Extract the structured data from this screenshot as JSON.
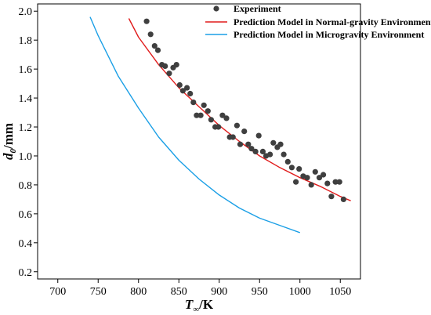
{
  "chart_data": {
    "type": "scatter",
    "xlabel_main": "T",
    "xlabel_sub": "∞",
    "xlabel_unit": "/K",
    "ylabel_main": "d",
    "ylabel_sub": "0",
    "ylabel_unit": "/mm",
    "xlim": [
      675,
      1075
    ],
    "ylim": [
      0.15,
      2.05
    ],
    "xticks": [
      700,
      750,
      800,
      850,
      900,
      950,
      1000,
      1050
    ],
    "yticks": [
      0.2,
      0.4,
      0.6,
      0.8,
      1.0,
      1.2,
      1.4,
      1.6,
      1.8,
      2.0
    ],
    "ytick_labels": [
      "0.2",
      "0.4",
      "0.6",
      "0.8",
      "1.0",
      "1.2",
      "1.4",
      "1.6",
      "1.8",
      "2.0"
    ],
    "grid": false,
    "legend_position": "top-right",
    "series": [
      {
        "name": "Experiment",
        "kind": "scatter",
        "color": "#3f3f3f",
        "points": [
          [
            810,
            1.93
          ],
          [
            815,
            1.84
          ],
          [
            820,
            1.76
          ],
          [
            824,
            1.73
          ],
          [
            829,
            1.63
          ],
          [
            833,
            1.62
          ],
          [
            838,
            1.57
          ],
          [
            843,
            1.61
          ],
          [
            847,
            1.63
          ],
          [
            851,
            1.49
          ],
          [
            855,
            1.45
          ],
          [
            860,
            1.47
          ],
          [
            864,
            1.43
          ],
          [
            868,
            1.37
          ],
          [
            872,
            1.28
          ],
          [
            877,
            1.28
          ],
          [
            881,
            1.35
          ],
          [
            886,
            1.31
          ],
          [
            890,
            1.25
          ],
          [
            895,
            1.2
          ],
          [
            899,
            1.2
          ],
          [
            904,
            1.28
          ],
          [
            909,
            1.26
          ],
          [
            913,
            1.13
          ],
          [
            917,
            1.13
          ],
          [
            922,
            1.21
          ],
          [
            926,
            1.08
          ],
          [
            931,
            1.17
          ],
          [
            936,
            1.08
          ],
          [
            940,
            1.05
          ],
          [
            945,
            1.03
          ],
          [
            949,
            1.14
          ],
          [
            954,
            1.03
          ],
          [
            958,
            1.0
          ],
          [
            963,
            1.01
          ],
          [
            967,
            1.09
          ],
          [
            972,
            1.06
          ],
          [
            976,
            1.08
          ],
          [
            980,
            1.01
          ],
          [
            985,
            0.96
          ],
          [
            990,
            0.92
          ],
          [
            995,
            0.82
          ],
          [
            999,
            0.91
          ],
          [
            1004,
            0.86
          ],
          [
            1009,
            0.85
          ],
          [
            1014,
            0.8
          ],
          [
            1019,
            0.89
          ],
          [
            1024,
            0.85
          ],
          [
            1029,
            0.87
          ],
          [
            1034,
            0.81
          ],
          [
            1039,
            0.72
          ],
          [
            1044,
            0.82
          ],
          [
            1049,
            0.82
          ],
          [
            1054,
            0.7
          ]
        ]
      },
      {
        "name": "Prediction Model in Normal-gravity Environment",
        "kind": "line",
        "color": "#e01b1b",
        "points": [
          [
            788,
            1.95
          ],
          [
            800,
            1.82
          ],
          [
            825,
            1.63
          ],
          [
            850,
            1.47
          ],
          [
            875,
            1.34
          ],
          [
            900,
            1.21
          ],
          [
            925,
            1.1
          ],
          [
            950,
            1.0
          ],
          [
            975,
            0.92
          ],
          [
            1000,
            0.85
          ],
          [
            1025,
            0.79
          ],
          [
            1050,
            0.72
          ],
          [
            1063,
            0.69
          ]
        ]
      },
      {
        "name": "Prediction Model in Microgravity Environment",
        "kind": "line",
        "color": "#1a9fe6",
        "points": [
          [
            740,
            1.96
          ],
          [
            750,
            1.83
          ],
          [
            775,
            1.55
          ],
          [
            800,
            1.33
          ],
          [
            825,
            1.13
          ],
          [
            850,
            0.97
          ],
          [
            875,
            0.84
          ],
          [
            900,
            0.73
          ],
          [
            925,
            0.64
          ],
          [
            950,
            0.57
          ],
          [
            975,
            0.52
          ],
          [
            1000,
            0.47
          ]
        ]
      }
    ]
  }
}
